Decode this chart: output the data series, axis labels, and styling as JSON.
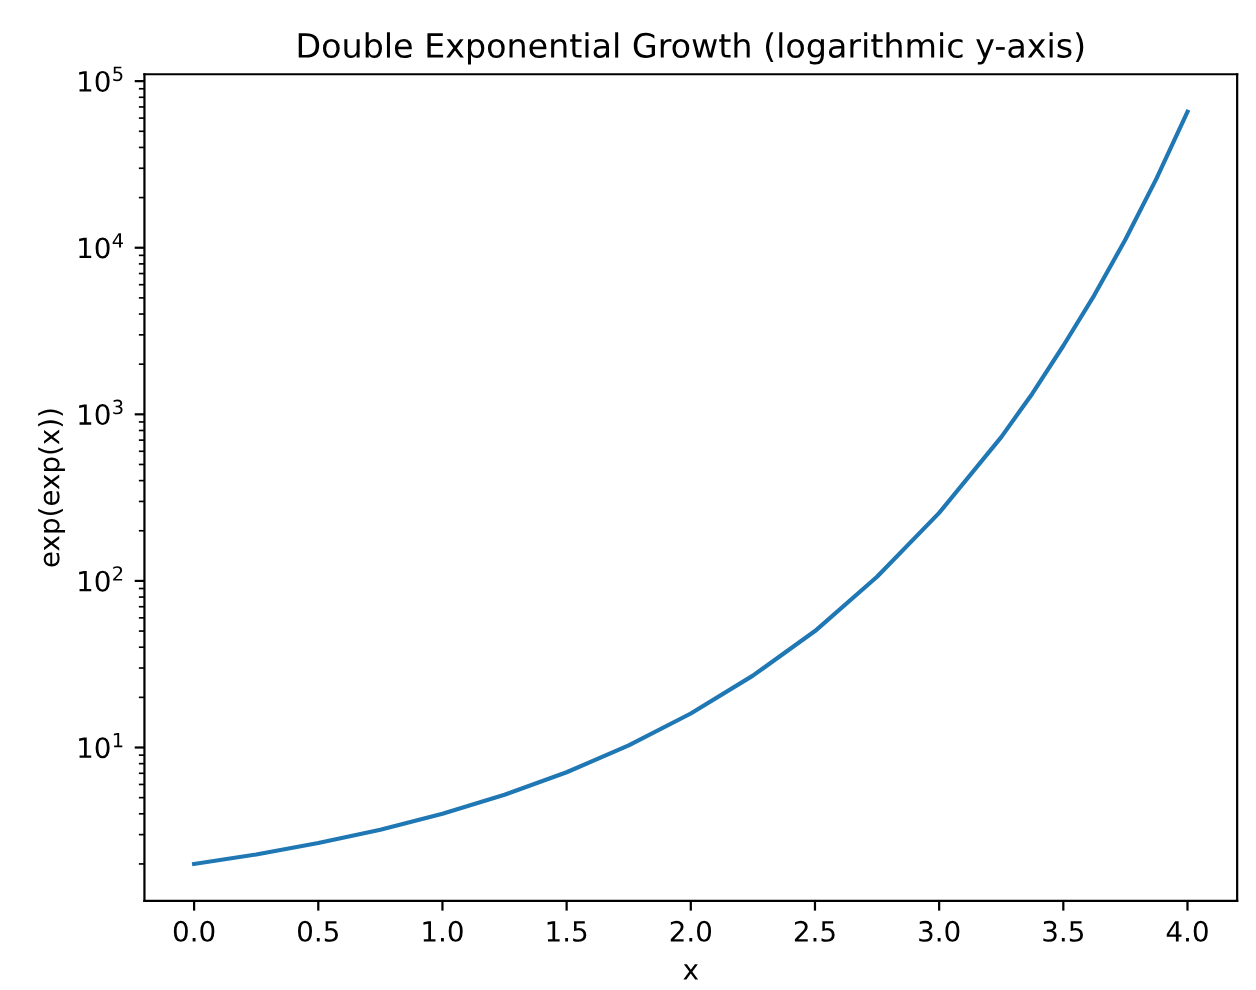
{
  "chart_data": {
    "type": "line",
    "title": "Double Exponential Growth (logarithmic y-axis)",
    "xlabel": "x",
    "ylabel": "exp(exp(x))",
    "log": "y",
    "grid": false,
    "legend": false,
    "xlim": [
      -0.2,
      4.2
    ],
    "xticks": [
      {
        "value": 0,
        "label": "0.0"
      },
      {
        "value": 0.5,
        "label": "0.5"
      },
      {
        "value": 1,
        "label": "1.0"
      },
      {
        "value": 1.5,
        "label": "1.5"
      },
      {
        "value": 2,
        "label": "2.0"
      },
      {
        "value": 2.5,
        "label": "2.5"
      },
      {
        "value": 3,
        "label": "3.0"
      },
      {
        "value": 3.5,
        "label": "3.5"
      },
      {
        "value": 4,
        "label": "4.0"
      }
    ],
    "ylim": [
      1.2,
      110000
    ],
    "yticks": [
      {
        "value": 10,
        "label": "10$^{1}$"
      },
      {
        "value": 100,
        "label": "10$^{2}$"
      },
      {
        "value": 1000,
        "label": "10$^{3}$"
      },
      {
        "value": 10000,
        "label": "10$^{4}$"
      },
      {
        "value": 100000,
        "label": "10$^{5}$"
      }
    ],
    "x": [
      0,
      0.25,
      0.5,
      0.75,
      1,
      1.25,
      1.5,
      1.75,
      2,
      2.25,
      2.5,
      2.75,
      3,
      3.25,
      3.375,
      3.5,
      3.625,
      3.75,
      3.875,
      4
    ],
    "series": [
      {
        "color": "#1f77b4",
        "values": [
          2,
          2.28,
          2.67,
          3.21,
          4,
          5.2,
          7.1,
          10.3,
          16,
          27,
          50,
          106,
          256,
          730,
          1330,
          2580,
          5200,
          11200,
          26000,
          65536
        ]
      }
    ]
  }
}
